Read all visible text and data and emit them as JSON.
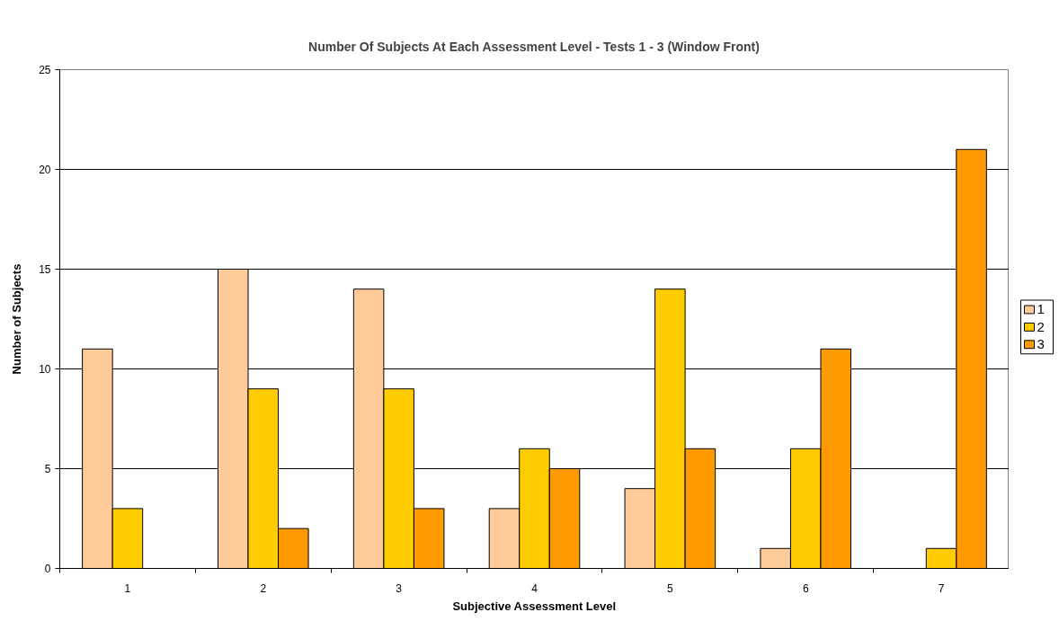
{
  "chart_data": {
    "type": "bar",
    "title": "Number Of Subjects At Each Assessment Level - Tests 1 - 3 (Window Front)",
    "xlabel": "Subjective Assessment Level",
    "ylabel": "Number of Subjects",
    "categories": [
      "1",
      "2",
      "3",
      "4",
      "5",
      "6",
      "7"
    ],
    "series": [
      {
        "name": "1",
        "color": "#ffcc99",
        "values": [
          11,
          15,
          14,
          3,
          4,
          1,
          null
        ]
      },
      {
        "name": "2",
        "color": "#ffcc00",
        "values": [
          3,
          9,
          9,
          6,
          14,
          6,
          1
        ]
      },
      {
        "name": "3",
        "color": "#ff9900",
        "values": [
          null,
          2,
          3,
          5,
          6,
          11,
          21
        ]
      }
    ],
    "ylim": [
      0,
      25
    ],
    "yticks": [
      0,
      5,
      10,
      15,
      20,
      25
    ],
    "grid": "y",
    "legend": "right"
  }
}
